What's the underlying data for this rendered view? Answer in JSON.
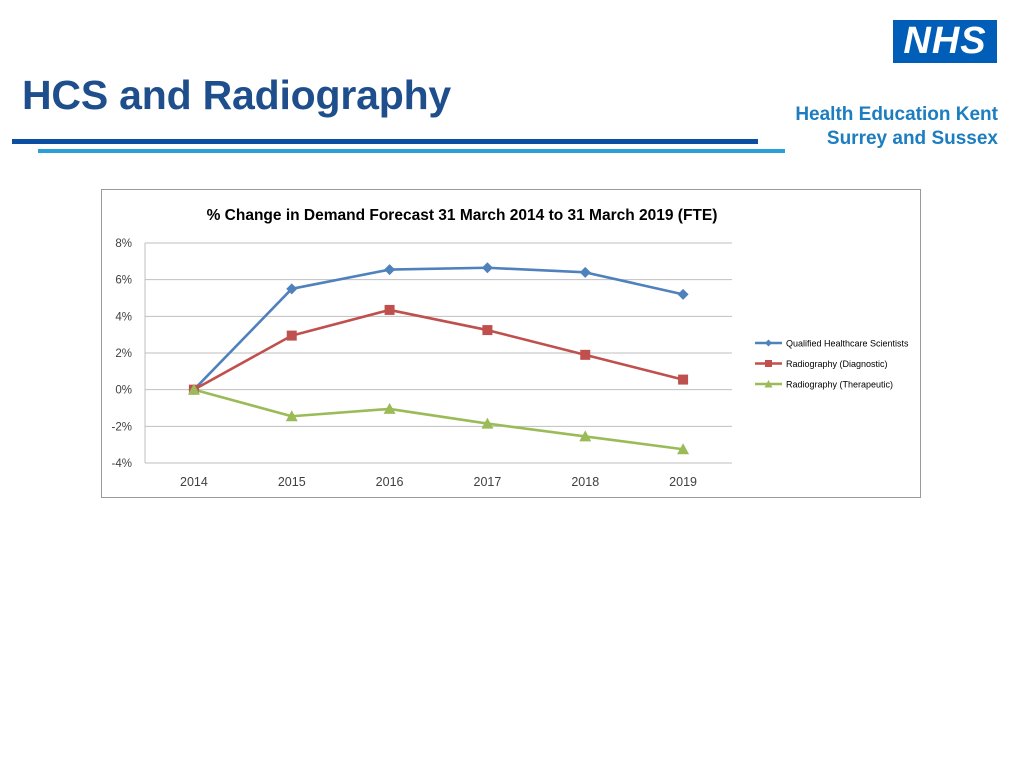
{
  "slide": {
    "title": "HCS and Radiography"
  },
  "branding": {
    "logo_text": "NHS",
    "org_line1": "Health Education Kent",
    "org_line2": "Surrey and Sussex",
    "colors": {
      "title": "#1f4e8c",
      "logo": "#005eb8",
      "org_text": "#1c7dc0",
      "rule_dark": "#0b4ea2",
      "rule_light": "#2a9fd8"
    }
  },
  "chart_data": {
    "type": "line",
    "title": "% Change in Demand Forecast 31 March 2014 to 31 March 2019 (FTE)",
    "xlabel": "",
    "ylabel": "",
    "categories": [
      "2014",
      "2015",
      "2016",
      "2017",
      "2018",
      "2019"
    ],
    "ylim": [
      -4,
      8
    ],
    "yticks": [
      8,
      6,
      4,
      2,
      0,
      -2,
      -4
    ],
    "ytick_labels": [
      "8%",
      "6%",
      "4%",
      "2%",
      "0%",
      "-2%",
      "-4%"
    ],
    "grid": true,
    "legend_position": "right",
    "series": [
      {
        "name": "Qualified Healthcare Scientists",
        "values": [
          0,
          5.5,
          6.55,
          6.65,
          6.4,
          5.2
        ],
        "color": "#4f81bd",
        "marker": "diamond"
      },
      {
        "name": "Radiography (Diagnostic)",
        "values": [
          0,
          2.95,
          4.35,
          3.25,
          1.9,
          0.55
        ],
        "color": "#c0504d",
        "marker": "square"
      },
      {
        "name": "Radiography (Therapeutic)",
        "values": [
          0,
          -1.45,
          -1.05,
          -1.85,
          -2.55,
          -3.25
        ],
        "color": "#9bbb59",
        "marker": "triangle"
      }
    ]
  }
}
